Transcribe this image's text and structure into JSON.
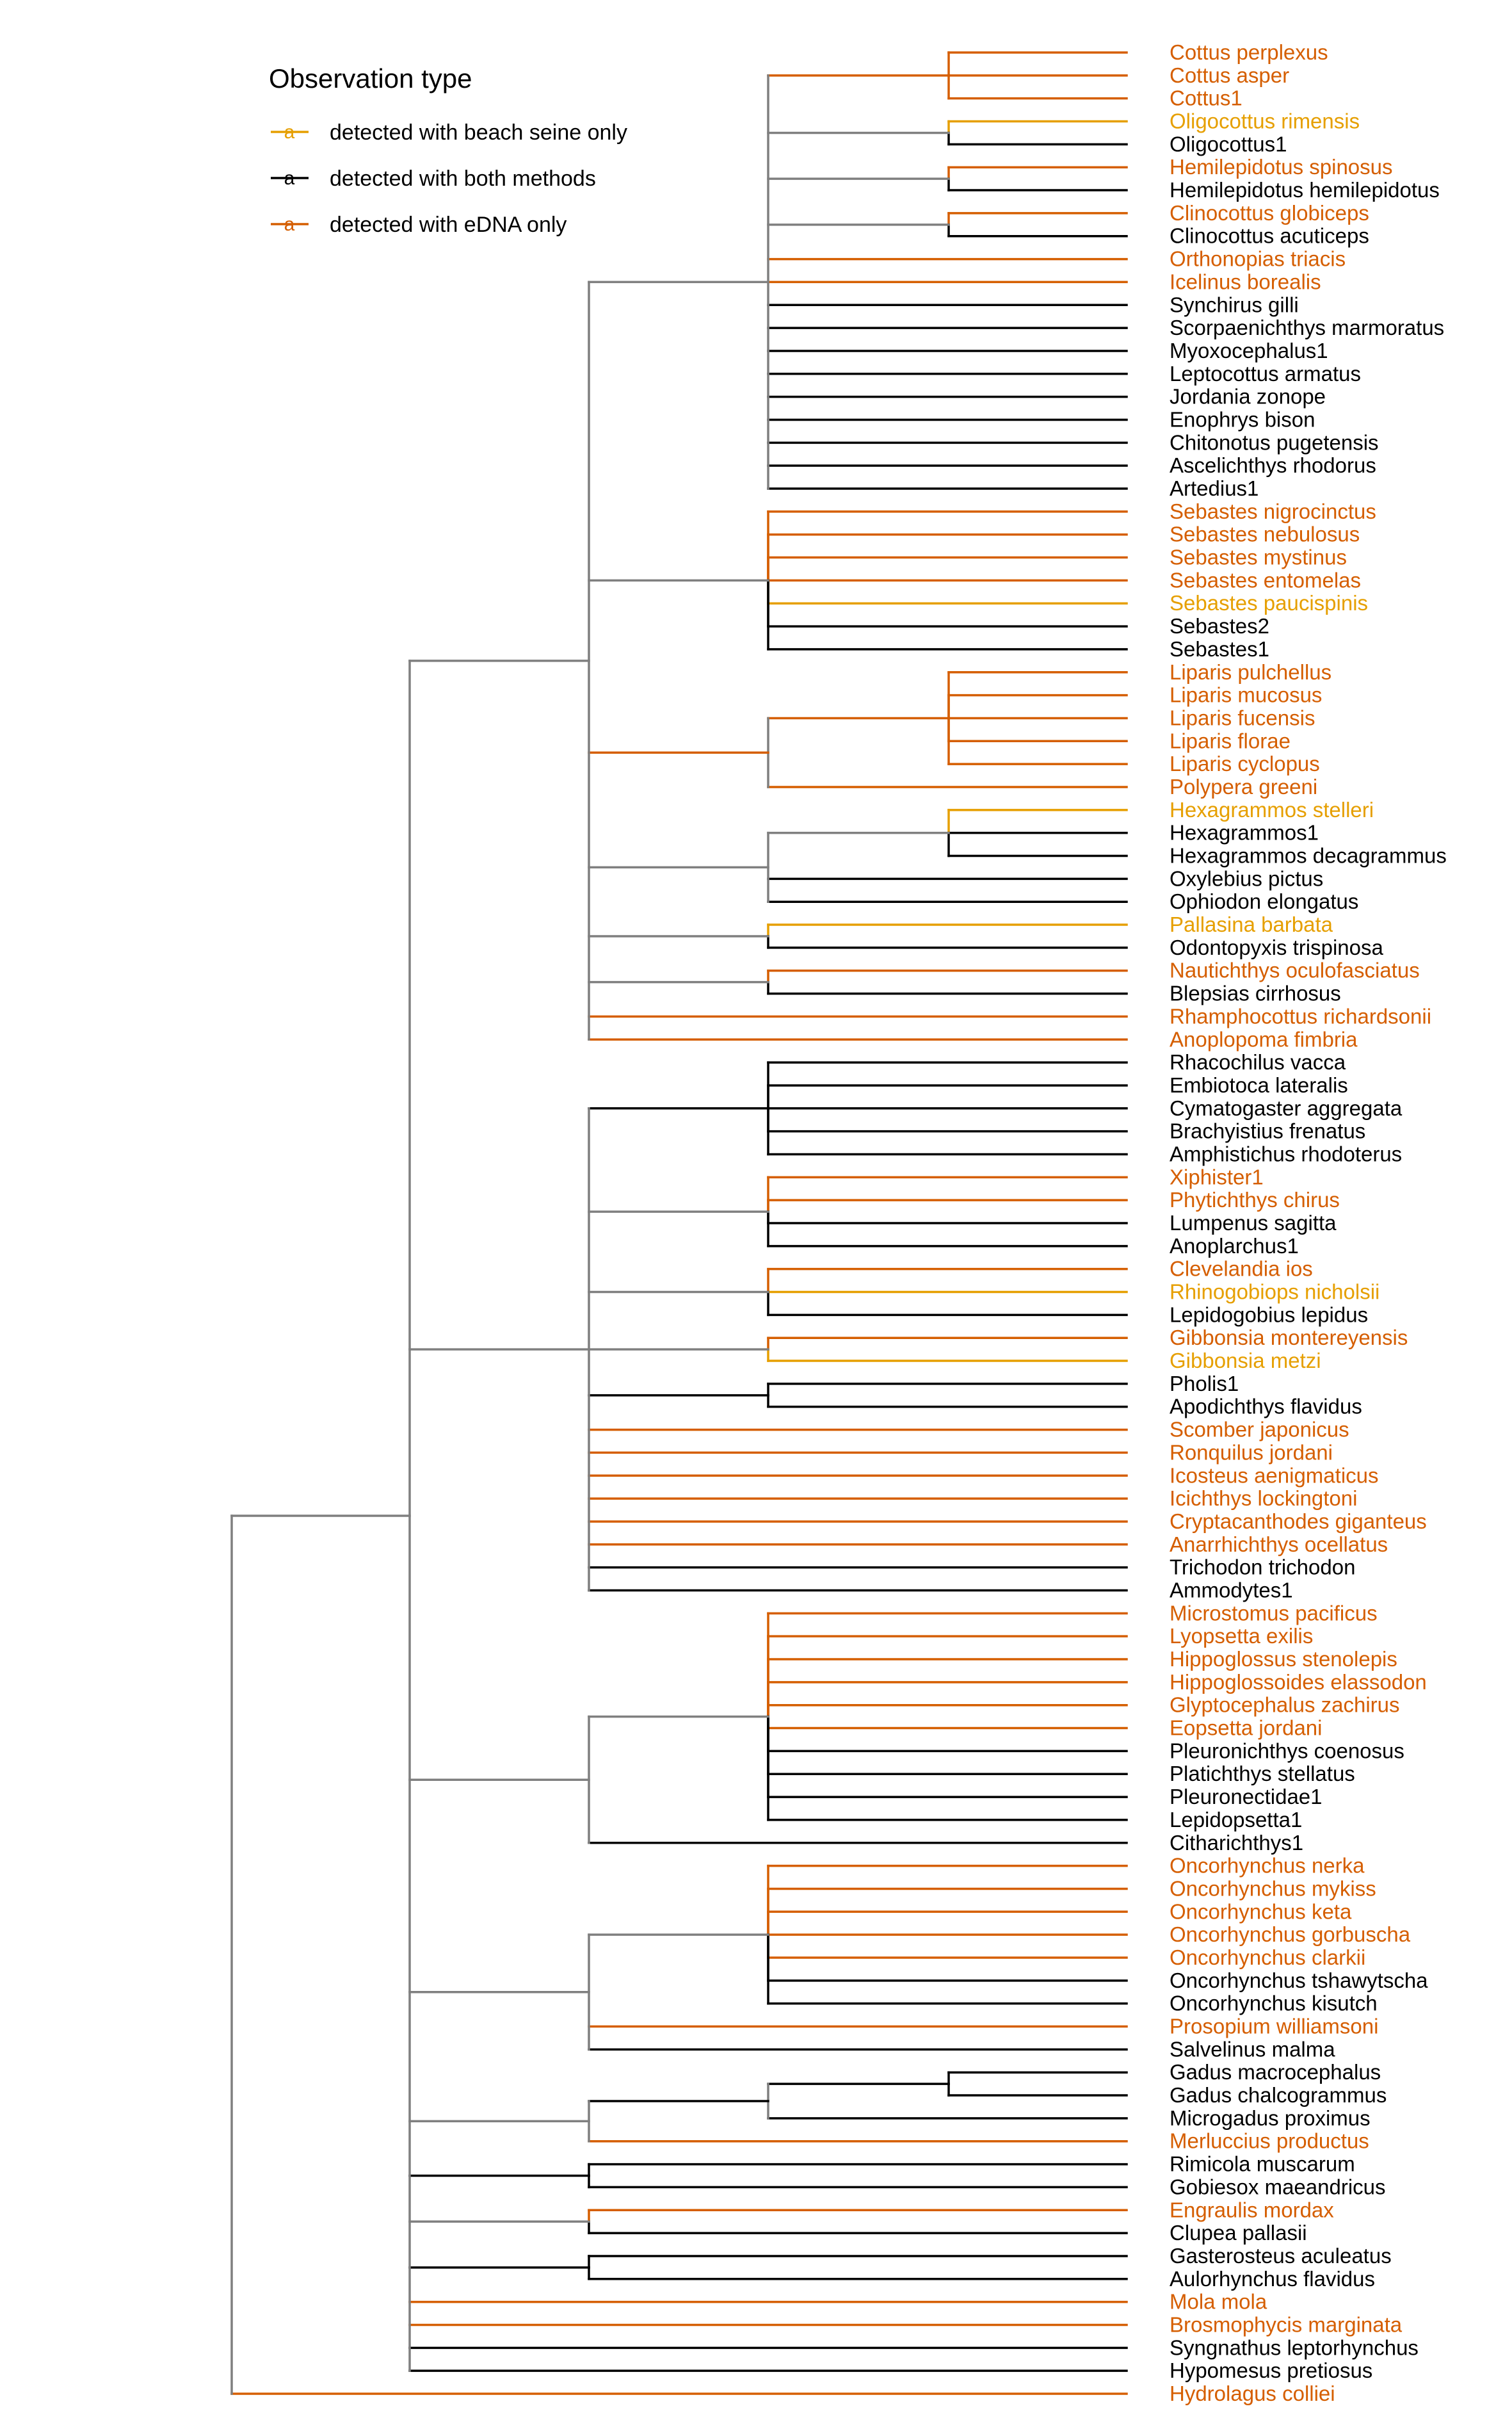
{
  "legend": {
    "title": "Observation type",
    "key_glyph": "a",
    "items": [
      {
        "key": "seine",
        "label": "detected with beach seine only",
        "color": "#E69F00"
      },
      {
        "key": "both",
        "label": "detected with both methods",
        "color": "#000000"
      },
      {
        "key": "edna",
        "label": "detected with eDNA only",
        "color": "#D55E00"
      }
    ]
  },
  "colors": {
    "internal_branch": "#7f7f7f",
    "seine": "#E69F00",
    "both": "#000000",
    "edna": "#D55E00"
  },
  "tree": {
    "c": [
      {
        "c": [
          {
            "c": [
              {
                "c": [
                  {
                    "c": [
                      {
                        "n": "Cottus perplexus",
                        "t": "edna"
                      },
                      {
                        "n": "Cottus asper",
                        "t": "edna"
                      },
                      {
                        "n": "Cottus1",
                        "t": "edna"
                      }
                    ]
                  },
                  {
                    "c": [
                      {
                        "n": "Oligocottus rimensis",
                        "t": "seine"
                      },
                      {
                        "n": "Oligocottus1",
                        "t": "both"
                      }
                    ]
                  },
                  {
                    "c": [
                      {
                        "n": "Hemilepidotus spinosus",
                        "t": "edna"
                      },
                      {
                        "n": "Hemilepidotus hemilepidotus",
                        "t": "both"
                      }
                    ]
                  },
                  {
                    "c": [
                      {
                        "n": "Clinocottus globiceps",
                        "t": "edna"
                      },
                      {
                        "n": "Clinocottus acuticeps",
                        "t": "both"
                      }
                    ]
                  },
                  {
                    "n": "Orthonopias triacis",
                    "t": "edna"
                  },
                  {
                    "n": "Icelinus borealis",
                    "t": "edna"
                  },
                  {
                    "n": "Synchirus gilli",
                    "t": "both"
                  },
                  {
                    "n": "Scorpaenichthys marmoratus",
                    "t": "both"
                  },
                  {
                    "n": "Myoxocephalus1",
                    "t": "both"
                  },
                  {
                    "n": "Leptocottus armatus",
                    "t": "both"
                  },
                  {
                    "n": "Jordania zonope",
                    "t": "both"
                  },
                  {
                    "n": "Enophrys bison",
                    "t": "both"
                  },
                  {
                    "n": "Chitonotus pugetensis",
                    "t": "both"
                  },
                  {
                    "n": "Ascelichthys rhodorus",
                    "t": "both"
                  },
                  {
                    "n": "Artedius1",
                    "t": "both"
                  }
                ]
              },
              {
                "c": [
                  {
                    "n": "Sebastes nigrocinctus",
                    "t": "edna"
                  },
                  {
                    "n": "Sebastes nebulosus",
                    "t": "edna"
                  },
                  {
                    "n": "Sebastes mystinus",
                    "t": "edna"
                  },
                  {
                    "n": "Sebastes entomelas",
                    "t": "edna"
                  },
                  {
                    "n": "Sebastes paucispinis",
                    "t": "seine"
                  },
                  {
                    "n": "Sebastes2",
                    "t": "both"
                  },
                  {
                    "n": "Sebastes1",
                    "t": "both"
                  }
                ]
              },
              {
                "c": [
                  {
                    "c": [
                      {
                        "n": "Liparis pulchellus",
                        "t": "edna"
                      },
                      {
                        "n": "Liparis mucosus",
                        "t": "edna"
                      },
                      {
                        "n": "Liparis fucensis",
                        "t": "edna"
                      },
                      {
                        "n": "Liparis florae",
                        "t": "edna"
                      },
                      {
                        "n": "Liparis cyclopus",
                        "t": "edna"
                      }
                    ]
                  },
                  {
                    "n": "Polypera greeni",
                    "t": "edna"
                  }
                ]
              },
              {
                "c": [
                  {
                    "c": [
                      {
                        "n": "Hexagrammos stelleri",
                        "t": "seine"
                      },
                      {
                        "n": "Hexagrammos1",
                        "t": "both"
                      },
                      {
                        "n": "Hexagrammos decagrammus",
                        "t": "both"
                      }
                    ]
                  },
                  {
                    "n": "Oxylebius pictus",
                    "t": "both"
                  },
                  {
                    "n": "Ophiodon elongatus",
                    "t": "both"
                  }
                ]
              },
              {
                "c": [
                  {
                    "n": "Pallasina barbata",
                    "t": "seine"
                  },
                  {
                    "n": "Odontopyxis trispinosa",
                    "t": "both"
                  }
                ]
              },
              {
                "c": [
                  {
                    "n": "Nautichthys oculofasciatus",
                    "t": "edna"
                  },
                  {
                    "n": "Blepsias cirrhosus",
                    "t": "both"
                  }
                ]
              },
              {
                "n": "Rhamphocottus richardsonii",
                "t": "edna"
              },
              {
                "n": "Anoplopoma fimbria",
                "t": "edna"
              }
            ]
          },
          {
            "c": [
              {
                "c": [
                  {
                    "n": "Rhacochilus vacca",
                    "t": "both"
                  },
                  {
                    "n": "Embiotoca lateralis",
                    "t": "both"
                  },
                  {
                    "n": "Cymatogaster aggregata",
                    "t": "both"
                  },
                  {
                    "n": "Brachyistius frenatus",
                    "t": "both"
                  },
                  {
                    "n": "Amphistichus rhodoterus",
                    "t": "both"
                  }
                ]
              },
              {
                "c": [
                  {
                    "n": "Xiphister1",
                    "t": "edna"
                  },
                  {
                    "n": "Phytichthys chirus",
                    "t": "edna"
                  },
                  {
                    "n": "Lumpenus sagitta",
                    "t": "both"
                  },
                  {
                    "n": "Anoplarchus1",
                    "t": "both"
                  }
                ]
              },
              {
                "c": [
                  {
                    "n": "Clevelandia ios",
                    "t": "edna"
                  },
                  {
                    "n": "Rhinogobiops nicholsii",
                    "t": "seine"
                  },
                  {
                    "n": "Lepidogobius lepidus",
                    "t": "both"
                  }
                ]
              },
              {
                "c": [
                  {
                    "n": "Gibbonsia montereyensis",
                    "t": "edna"
                  },
                  {
                    "n": "Gibbonsia metzi",
                    "t": "seine"
                  }
                ]
              },
              {
                "c": [
                  {
                    "n": "Pholis1",
                    "t": "both"
                  },
                  {
                    "n": "Apodichthys flavidus",
                    "t": "both"
                  }
                ]
              },
              {
                "n": "Scomber japonicus",
                "t": "edna"
              },
              {
                "n": "Ronquilus jordani",
                "t": "edna"
              },
              {
                "n": "Icosteus aenigmaticus",
                "t": "edna"
              },
              {
                "n": "Icichthys lockingtoni",
                "t": "edna"
              },
              {
                "n": "Cryptacanthodes giganteus",
                "t": "edna"
              },
              {
                "n": "Anarrhichthys ocellatus",
                "t": "edna"
              },
              {
                "n": "Trichodon trichodon",
                "t": "both"
              },
              {
                "n": "Ammodytes1",
                "t": "both"
              }
            ]
          },
          {
            "c": [
              {
                "c": [
                  {
                    "n": "Microstomus pacificus",
                    "t": "edna"
                  },
                  {
                    "n": "Lyopsetta exilis",
                    "t": "edna"
                  },
                  {
                    "n": "Hippoglossus stenolepis",
                    "t": "edna"
                  },
                  {
                    "n": "Hippoglossoides elassodon",
                    "t": "edna"
                  },
                  {
                    "n": "Glyptocephalus zachirus",
                    "t": "edna"
                  },
                  {
                    "n": "Eopsetta jordani",
                    "t": "edna"
                  },
                  {
                    "n": "Pleuronichthys coenosus",
                    "t": "both"
                  },
                  {
                    "n": "Platichthys stellatus",
                    "t": "both"
                  },
                  {
                    "n": "Pleuronectidae1",
                    "t": "both"
                  },
                  {
                    "n": "Lepidopsetta1",
                    "t": "both"
                  }
                ]
              },
              {
                "n": "Citharichthys1",
                "t": "both"
              }
            ]
          },
          {
            "c": [
              {
                "c": [
                  {
                    "n": "Oncorhynchus nerka",
                    "t": "edna"
                  },
                  {
                    "n": "Oncorhynchus mykiss",
                    "t": "edna"
                  },
                  {
                    "n": "Oncorhynchus keta",
                    "t": "edna"
                  },
                  {
                    "n": "Oncorhynchus gorbuscha",
                    "t": "edna"
                  },
                  {
                    "n": "Oncorhynchus clarkii",
                    "t": "edna"
                  },
                  {
                    "n": "Oncorhynchus tshawytscha",
                    "t": "both"
                  },
                  {
                    "n": "Oncorhynchus kisutch",
                    "t": "both"
                  }
                ]
              },
              {
                "n": "Prosopium williamsoni",
                "t": "edna"
              },
              {
                "n": "Salvelinus malma",
                "t": "both"
              }
            ]
          },
          {
            "c": [
              {
                "c": [
                  {
                    "c": [
                      {
                        "n": "Gadus macrocephalus",
                        "t": "both"
                      },
                      {
                        "n": "Gadus chalcogrammus",
                        "t": "both"
                      }
                    ]
                  },
                  {
                    "n": "Microgadus proximus",
                    "t": "both"
                  }
                ]
              },
              {
                "n": "Merluccius productus",
                "t": "edna"
              }
            ]
          },
          {
            "c": [
              {
                "n": "Rimicola muscarum",
                "t": "both"
              },
              {
                "n": "Gobiesox maeandricus",
                "t": "both"
              }
            ]
          },
          {
            "c": [
              {
                "n": "Engraulis mordax",
                "t": "edna"
              },
              {
                "n": "Clupea pallasii",
                "t": "both"
              }
            ]
          },
          {
            "c": [
              {
                "n": "Gasterosteus aculeatus",
                "t": "both"
              },
              {
                "n": "Aulorhynchus flavidus",
                "t": "both"
              }
            ]
          },
          {
            "n": "Mola mola",
            "t": "edna"
          },
          {
            "n": "Brosmophycis marginata",
            "t": "edna"
          },
          {
            "n": "Syngnathus leptorhynchus",
            "t": "both"
          },
          {
            "n": "Hypomesus pretiosus",
            "t": "both"
          }
        ]
      },
      {
        "n": "Hydrolagus colliei",
        "t": "edna"
      }
    ]
  }
}
